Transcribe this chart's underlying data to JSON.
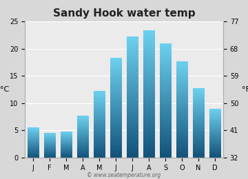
{
  "title": "Sandy Hook water temp",
  "months": [
    "J",
    "F",
    "M",
    "A",
    "M",
    "J",
    "J",
    "A",
    "S",
    "O",
    "N",
    "D"
  ],
  "values_c": [
    5.5,
    4.5,
    4.8,
    7.7,
    12.2,
    18.3,
    22.2,
    23.3,
    21.0,
    17.7,
    12.7,
    8.9
  ],
  "ylim_c": [
    0,
    25
  ],
  "yticks_c": [
    0,
    5,
    10,
    15,
    20,
    25
  ],
  "yticks_f": [
    32,
    41,
    50,
    59,
    68,
    77
  ],
  "ylabel_left": "°C",
  "ylabel_right": "°F",
  "bar_color_top": "#6dd0ef",
  "bar_color_bottom": "#13527a",
  "background_color": "#d8d8d8",
  "plot_bg_color": "#ebebeb",
  "grid_color": "#ffffff",
  "watermark": "© www.seatemperature.org",
  "title_fontsize": 11,
  "tick_fontsize": 7,
  "label_fontsize": 8,
  "bar_width": 0.7
}
